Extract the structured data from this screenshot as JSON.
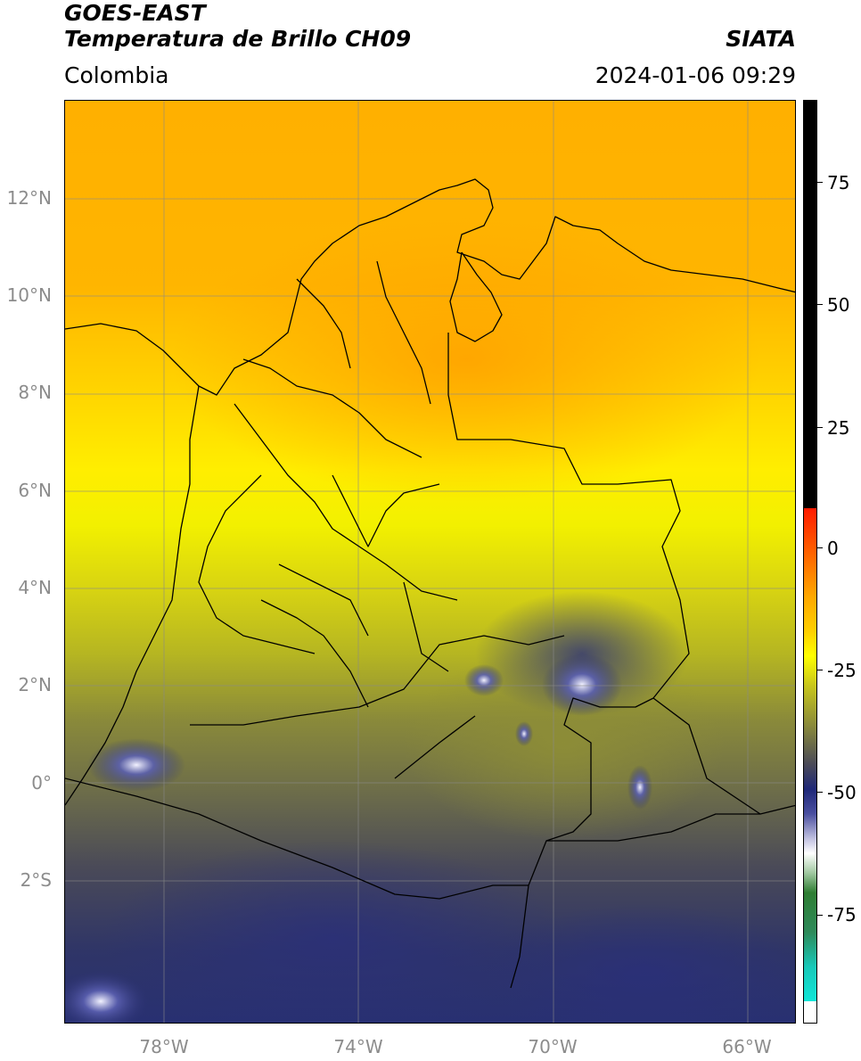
{
  "header": {
    "satellite": "GOES-EAST",
    "product": "Temperatura de Brillo CH09",
    "organization": "SIATA",
    "region": "Colombia",
    "timestamp": "2024-01-06 09:29"
  },
  "map": {
    "lat_labels": [
      "12°N",
      "10°N",
      "8°N",
      "6°N",
      "4°N",
      "2°N",
      "0°",
      "2°S"
    ],
    "lon_labels": [
      "78°W",
      "74°W",
      "70°W",
      "66°W"
    ],
    "extent": {
      "lon_min": -80,
      "lon_max": -65,
      "lat_min": -5,
      "lat_max": 14
    }
  },
  "colorbar": {
    "ticks": [
      "75",
      "50",
      "25",
      "0",
      "-25",
      "-50",
      "-75"
    ],
    "range": [
      -95,
      90
    ],
    "colors": {
      "black": "#000000",
      "red": "#ff2000",
      "orange": "#ffa800",
      "yellow": "#ffff00",
      "olive": "#b5b522",
      "gray": "#4a4a58",
      "navy": "#1f2878",
      "white": "#ffffff",
      "green": "#2e7d32",
      "cyan": "#10e6d8"
    }
  }
}
